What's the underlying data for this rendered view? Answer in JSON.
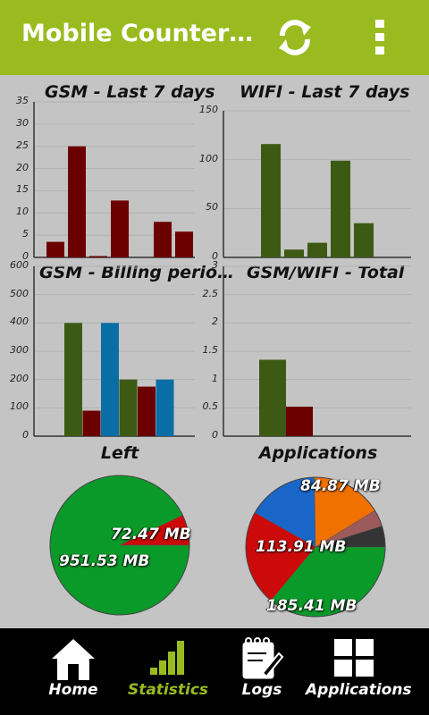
{
  "app": {
    "title": "Mobile Counter…"
  },
  "colors": {
    "accent": "#99bb1f",
    "gsm": "#6b0000",
    "wifi": "#3d5a14",
    "billing_blue": "#0a6ea6",
    "pie_green": "#0a9a2a",
    "pie_red": "#cc0a0a",
    "pie_blue": "#1a66c8",
    "pie_orange": "#f07000",
    "pie_rose": "#9c5a5a",
    "pie_dark": "#333333"
  },
  "toolbar": {
    "refresh_icon": "refresh-icon",
    "menu_icon": "overflow-menu-icon"
  },
  "charts": {
    "gsm7": {
      "title": "GSM - Last 7 days",
      "ticks": [
        "35",
        "30",
        "25",
        "20",
        "15",
        "10",
        "5",
        "0"
      ]
    },
    "wifi7": {
      "title": "WIFI - Last 7 days",
      "ticks": [
        "150",
        "100",
        "50",
        "0"
      ]
    },
    "billing": {
      "title": "GSM - Billing perio…",
      "ticks": [
        "600",
        "500",
        "400",
        "300",
        "200",
        "100",
        "0"
      ]
    },
    "total": {
      "title": "GSM/WIFI - Total",
      "ticks": [
        "3",
        "2.5",
        "2",
        "1.5",
        "1",
        "0.5",
        "0"
      ]
    },
    "left": {
      "title": "Left",
      "label_small": "72.47 MB",
      "label_big": "951.53 MB"
    },
    "apps": {
      "title": "Applications",
      "label_a": "84.87 MB",
      "label_b": "113.91 MB",
      "label_c": "185.41 MB"
    }
  },
  "chart_data": [
    {
      "type": "bar",
      "title": "GSM - Last 7 days",
      "values": [
        3.5,
        25,
        0.3,
        12.8,
        0,
        8,
        5.8
      ],
      "ylim": [
        0,
        35
      ]
    },
    {
      "type": "bar",
      "title": "WIFI - Last 7 days",
      "values": [
        116,
        8,
        15,
        99,
        35
      ],
      "ylim": [
        0,
        150
      ]
    },
    {
      "type": "bar",
      "title": "GSM - Billing perio…",
      "values": [
        400,
        90,
        400,
        200,
        175,
        200
      ],
      "colors": [
        "wifi",
        "gsm",
        "billing_blue",
        "wifi",
        "gsm",
        "billing_blue"
      ],
      "ylim": [
        0,
        600
      ]
    },
    {
      "type": "bar",
      "title": "GSM/WIFI - Total",
      "values": [
        1.35,
        0.52
      ],
      "colors": [
        "wifi",
        "gsm"
      ],
      "ylim": [
        0,
        3
      ]
    },
    {
      "type": "pie",
      "title": "Left",
      "slices": [
        {
          "label": "951.53 MB",
          "value": 951.53
        },
        {
          "label": "72.47 MB",
          "value": 72.47
        }
      ]
    },
    {
      "type": "pie",
      "title": "Applications",
      "slices": [
        {
          "label": "185.41 MB",
          "value": 185.41
        },
        {
          "label": "113.91 MB",
          "value": 113.91
        },
        {
          "label": "",
          "value": 85
        },
        {
          "label": "84.87 MB",
          "value": 84.87
        },
        {
          "label": "",
          "value": 20
        },
        {
          "label": "",
          "value": 25
        }
      ]
    }
  ],
  "nav": {
    "items": [
      {
        "label": "Home",
        "icon": "home-icon"
      },
      {
        "label": "Statistics",
        "icon": "bar-chart-icon"
      },
      {
        "label": "Logs",
        "icon": "logs-icon"
      },
      {
        "label": "Applications",
        "icon": "apps-grid-icon"
      }
    ]
  }
}
